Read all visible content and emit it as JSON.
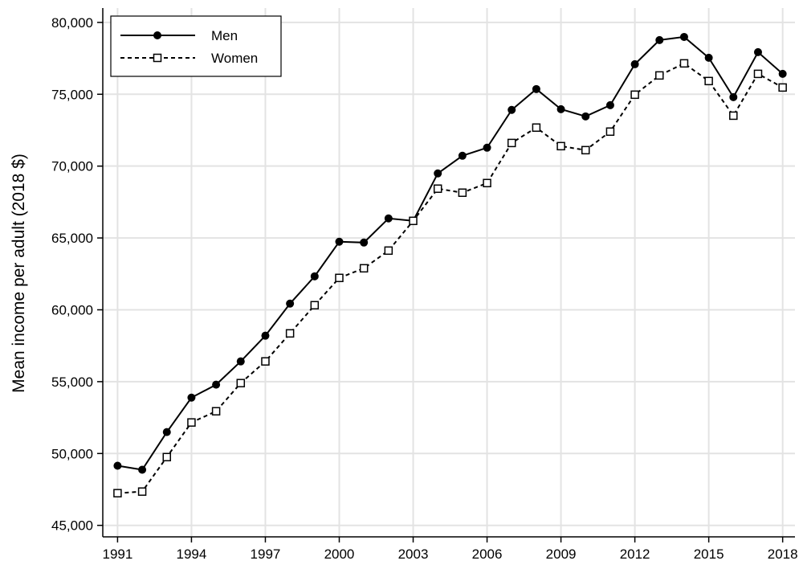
{
  "chart_data": {
    "type": "line",
    "y_label": "Mean income per adult (2018 $)",
    "x": [
      1991,
      1992,
      1993,
      1994,
      1995,
      1996,
      1997,
      1998,
      1999,
      2000,
      2001,
      2002,
      2003,
      2004,
      2005,
      2006,
      2007,
      2008,
      2009,
      2010,
      2011,
      2012,
      2013,
      2014,
      2015,
      2016,
      2017,
      2018
    ],
    "series": [
      {
        "name": "Men",
        "color": "#000000",
        "linestyle": "solid",
        "marker": "circle",
        "values": [
          49150,
          48870,
          51490,
          53890,
          54790,
          56410,
          58200,
          60430,
          62330,
          64740,
          64680,
          66360,
          66190,
          69490,
          70720,
          71280,
          73910,
          75360,
          73960,
          73460,
          74240,
          77090,
          78770,
          78990,
          77540,
          74800,
          77930,
          76420
        ]
      },
      {
        "name": "Women",
        "color": "#000000",
        "linestyle": "dashed",
        "marker": "square",
        "values": [
          47240,
          47350,
          49750,
          52160,
          52940,
          54900,
          56410,
          58360,
          60320,
          62220,
          62890,
          64120,
          66190,
          68430,
          68150,
          68820,
          71610,
          72680,
          71390,
          71110,
          72400,
          74970,
          76310,
          77150,
          75920,
          73510,
          76420,
          75470
        ]
      }
    ],
    "xlim": [
      1990.4,
      2018.5
    ],
    "ylim": [
      44200,
      81000
    ],
    "xticks": [
      1991,
      1994,
      1997,
      2000,
      2003,
      2006,
      2009,
      2012,
      2015,
      2018
    ],
    "yticks": [
      {
        "value": 45000,
        "label": "45,000"
      },
      {
        "value": 50000,
        "label": "50,000"
      },
      {
        "value": 55000,
        "label": "55,000"
      },
      {
        "value": 60000,
        "label": "60,000"
      },
      {
        "value": 65000,
        "label": "65,000"
      },
      {
        "value": 70000,
        "label": "70,000"
      },
      {
        "value": 75000,
        "label": "75,000"
      },
      {
        "value": 80000,
        "label": "80,000"
      }
    ],
    "grid": true,
    "legend": "top-left"
  }
}
